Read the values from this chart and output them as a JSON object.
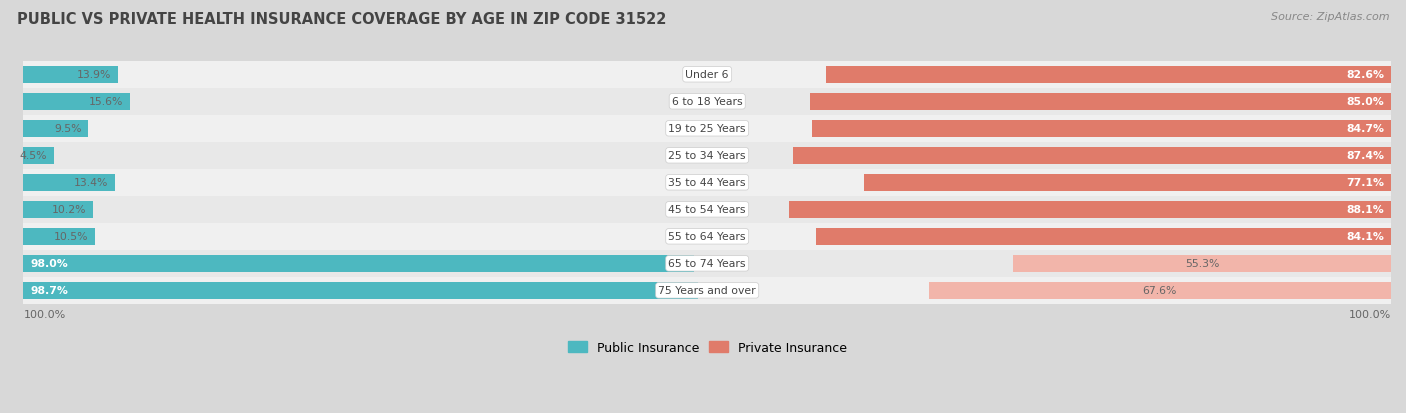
{
  "title": "PUBLIC VS PRIVATE HEALTH INSURANCE COVERAGE BY AGE IN ZIP CODE 31522",
  "source": "Source: ZipAtlas.com",
  "categories": [
    "Under 6",
    "6 to 18 Years",
    "19 to 25 Years",
    "25 to 34 Years",
    "35 to 44 Years",
    "45 to 54 Years",
    "55 to 64 Years",
    "65 to 74 Years",
    "75 Years and over"
  ],
  "public_values": [
    13.9,
    15.6,
    9.5,
    4.5,
    13.4,
    10.2,
    10.5,
    98.0,
    98.7
  ],
  "private_values": [
    82.6,
    85.0,
    84.7,
    87.4,
    77.1,
    88.1,
    84.1,
    55.3,
    67.6
  ],
  "public_color_strong": "#4db8c0",
  "public_color_light": "#4db8c0",
  "private_color_strong": "#e07b6a",
  "private_color_light": "#f2b5aa",
  "row_colors": [
    "#f0f0f0",
    "#e8e8e8"
  ],
  "bg_color": "#d8d8d8",
  "title_color": "#444444",
  "source_color": "#888888",
  "value_color_white": "#ffffff",
  "value_color_dark": "#666666",
  "cat_label_color": "#444444",
  "x_axis_label": "100.0%",
  "bar_height": 0.62,
  "xlim": 100,
  "strong_threshold": 70,
  "legend_labels": [
    "Public Insurance",
    "Private Insurance"
  ]
}
